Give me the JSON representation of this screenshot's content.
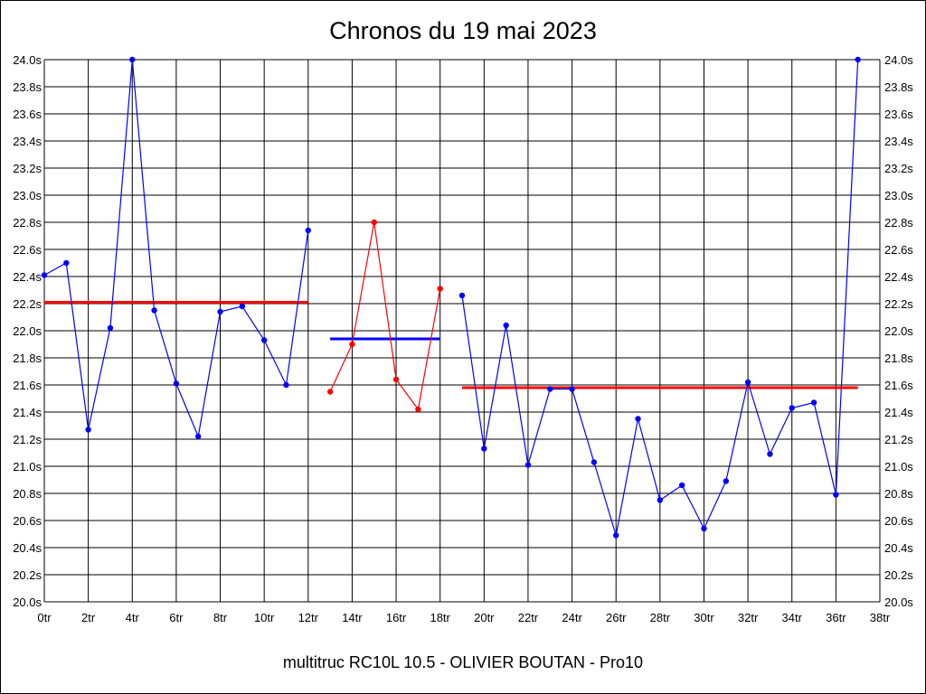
{
  "chart_data": {
    "type": "line",
    "title": "Chronos du 19 mai 2023",
    "footer": "multitruc RC10L 10.5 - OLIVIER BOUTAN - Pro10",
    "xlim": [
      0,
      38
    ],
    "ylim": [
      20.0,
      24.0
    ],
    "x_ticks": [
      0,
      2,
      4,
      6,
      8,
      10,
      12,
      14,
      16,
      18,
      20,
      22,
      24,
      26,
      28,
      30,
      32,
      34,
      36,
      38
    ],
    "x_tick_suffix": "tr",
    "y_ticks": [
      20.0,
      20.2,
      20.4,
      20.6,
      20.8,
      21.0,
      21.2,
      21.4,
      21.6,
      21.8,
      22.0,
      22.2,
      22.4,
      22.6,
      22.8,
      23.0,
      23.2,
      23.4,
      23.6,
      23.8,
      24.0
    ],
    "y_tick_suffix": "s",
    "grid": true,
    "series": [
      {
        "color": "#0000ff",
        "points": [
          [
            0,
            22.41
          ],
          [
            1,
            22.5
          ],
          [
            2,
            21.27
          ],
          [
            3,
            22.02
          ],
          [
            4,
            24.0
          ],
          [
            5,
            22.15
          ],
          [
            6,
            21.61
          ],
          [
            7,
            21.22
          ],
          [
            8,
            22.14
          ],
          [
            9,
            22.18
          ],
          [
            10,
            21.93
          ],
          [
            11,
            21.6
          ],
          [
            12,
            22.74
          ]
        ]
      },
      {
        "color": "#ff0000",
        "points": [
          [
            13,
            21.55
          ],
          [
            14,
            21.9
          ],
          [
            15,
            22.8
          ],
          [
            16,
            21.64
          ],
          [
            17,
            21.42
          ],
          [
            18,
            22.31
          ]
        ]
      },
      {
        "color": "#0000ff",
        "points": [
          [
            19,
            22.26
          ],
          [
            20,
            21.13
          ],
          [
            21,
            22.04
          ],
          [
            22,
            21.01
          ],
          [
            23,
            21.57
          ],
          [
            24,
            21.57
          ],
          [
            25,
            21.03
          ],
          [
            26,
            20.49
          ],
          [
            27,
            21.35
          ],
          [
            28,
            20.75
          ],
          [
            29,
            20.86
          ],
          [
            30,
            20.54
          ],
          [
            31,
            20.89
          ],
          [
            32,
            21.62
          ],
          [
            33,
            21.09
          ],
          [
            34,
            21.43
          ],
          [
            35,
            21.47
          ],
          [
            36,
            20.79
          ],
          [
            37,
            24.0
          ]
        ]
      }
    ],
    "averages": [
      {
        "x_start": 0,
        "x_end": 12,
        "y": 22.21,
        "color": "#ff0000"
      },
      {
        "x_start": 13,
        "x_end": 18,
        "y": 21.94,
        "color": "#0000ff"
      },
      {
        "x_start": 19,
        "x_end": 37,
        "y": 21.58,
        "color": "#ff0000"
      }
    ]
  }
}
